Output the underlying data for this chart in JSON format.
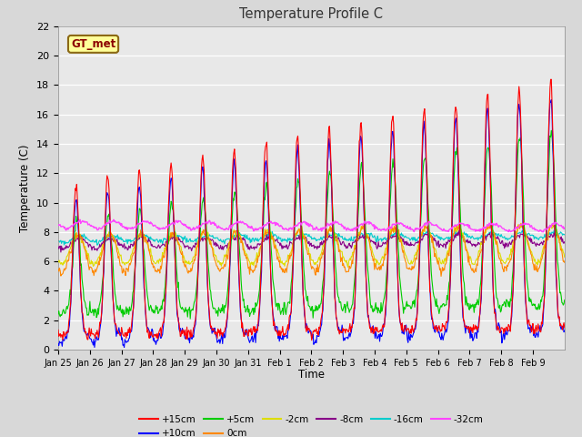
{
  "title": "Temperature Profile C",
  "xlabel": "Time",
  "ylabel": "Temperature (C)",
  "ylim": [
    0,
    22
  ],
  "annotation_text": "GT_met",
  "series_colors": {
    "+15cm": "#FF0000",
    "+10cm": "#0000FF",
    "+5cm": "#00CC00",
    "0cm": "#FF8800",
    "-2cm": "#DDDD00",
    "-8cm": "#880088",
    "-16cm": "#00CCCC",
    "-32cm": "#FF44FF"
  },
  "xtick_labels": [
    "Jan 25",
    "Jan 26",
    "Jan 27",
    "Jan 28",
    "Jan 29",
    "Jan 30",
    "Jan 31",
    "Feb 1",
    "Feb 2",
    "Feb 3",
    "Feb 4",
    "Feb 5",
    "Feb 6",
    "Feb 7",
    "Feb 8",
    "Feb 9"
  ],
  "ytick_labels": [
    0,
    2,
    4,
    6,
    8,
    10,
    12,
    14,
    16,
    18,
    20,
    22
  ],
  "fig_bg": "#D8D8D8",
  "ax_bg": "#E8E8E8"
}
